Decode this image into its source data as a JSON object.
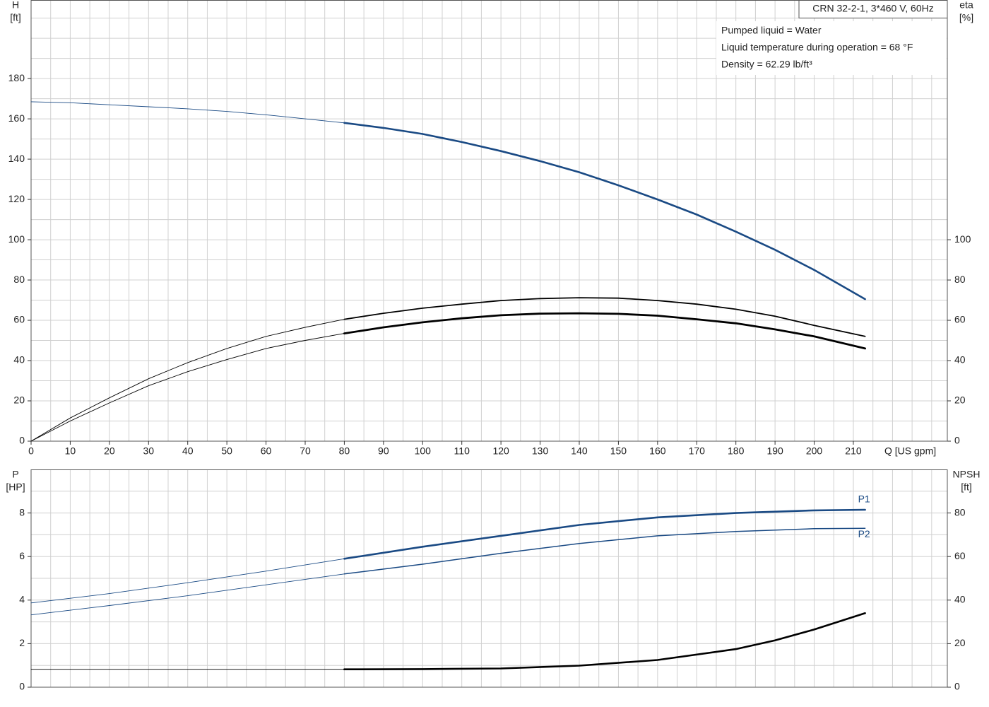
{
  "chart_data": [
    {
      "type": "line",
      "title": "CRN 32-2-1, 3*460 V, 60Hz",
      "annotations": [
        "Pumped liquid = Water",
        "Liquid temperature during operation = 68 °F",
        "Density = 62.29 lb/ft³"
      ],
      "ylabel": "H",
      "yunit": "[ft]",
      "y2label": "eta",
      "y2unit": "[%]",
      "xlabel": "Q [US gpm]",
      "xlim": [
        0,
        234
      ],
      "xticks": [
        0,
        10,
        20,
        30,
        40,
        50,
        60,
        70,
        80,
        90,
        100,
        110,
        120,
        130,
        140,
        150,
        160,
        170,
        180,
        190,
        200,
        210
      ],
      "xgrid": [
        5,
        10,
        15,
        20,
        25,
        30,
        35,
        40,
        45,
        50,
        55,
        60,
        65,
        70,
        75,
        80,
        85,
        90,
        95,
        100,
        105,
        110,
        115,
        120,
        125,
        130,
        135,
        140,
        145,
        150,
        155,
        160,
        165,
        170,
        175,
        180,
        185,
        190,
        195,
        200,
        205,
        210,
        215,
        220,
        225,
        230
      ],
      "ylim": [
        0,
        219
      ],
      "yticks": [
        0,
        20,
        40,
        60,
        80,
        100,
        120,
        140,
        160,
        180
      ],
      "ygrid": [
        10,
        20,
        30,
        40,
        50,
        60,
        70,
        80,
        90,
        100,
        110,
        120,
        130,
        140,
        150,
        160,
        170,
        180,
        190,
        200,
        210
      ],
      "y2lim": [
        0,
        219
      ],
      "y2ticks": [
        0,
        20,
        40,
        60,
        80,
        100
      ],
      "grid": true,
      "series": [
        {
          "color": "#1a4a84",
          "width": 0.9,
          "x": [
            0,
            10,
            20,
            30,
            40,
            50,
            60,
            70,
            80
          ],
          "values": [
            168.5,
            168,
            167,
            166,
            165,
            163.7,
            162,
            160,
            158
          ]
        },
        {
          "color": "#1a4a84",
          "width": 2.6,
          "x": [
            80,
            90,
            100,
            110,
            120,
            130,
            140,
            150,
            160,
            170,
            180,
            190,
            200,
            213
          ],
          "values": [
            158,
            155.5,
            152.5,
            148.5,
            144,
            139,
            133.5,
            127,
            120,
            112.5,
            104,
            95,
            85,
            70.5
          ]
        },
        {
          "color": "#000000",
          "width": 0.9,
          "axis": "y2",
          "x": [
            0,
            10,
            20,
            30,
            40,
            50,
            60,
            70,
            80
          ],
          "values": [
            0,
            11.5,
            21.5,
            31,
            39,
            46,
            52,
            56.5,
            60.5
          ]
        },
        {
          "color": "#000000",
          "width": 1.8,
          "axis": "y2",
          "x": [
            80,
            90,
            100,
            110,
            120,
            130,
            140,
            150,
            160,
            170,
            180,
            190,
            200,
            213
          ],
          "values": [
            60.5,
            63.5,
            66,
            68,
            69.8,
            70.8,
            71.2,
            71,
            69.8,
            68,
            65.5,
            62,
            57.5,
            52
          ]
        },
        {
          "color": "#000000",
          "width": 0.9,
          "axis": "y2",
          "x": [
            0,
            10,
            20,
            30,
            40,
            50,
            60,
            70,
            80
          ],
          "values": [
            0,
            10,
            19,
            27.5,
            34.5,
            40.5,
            46,
            50,
            53.5
          ]
        },
        {
          "color": "#000000",
          "width": 2.8,
          "axis": "y2",
          "x": [
            80,
            90,
            100,
            110,
            120,
            130,
            140,
            150,
            160,
            170,
            180,
            190,
            200,
            213
          ],
          "values": [
            53.5,
            56.5,
            59,
            61,
            62.5,
            63.3,
            63.5,
            63.2,
            62.3,
            60.5,
            58.5,
            55.5,
            52,
            46
          ]
        }
      ]
    },
    {
      "type": "line",
      "ylabel": "P",
      "yunit": "[HP]",
      "y2label": "NPSH",
      "y2unit": "[ft]",
      "xlim": [
        0,
        234
      ],
      "xgrid": [
        5,
        10,
        15,
        20,
        25,
        30,
        35,
        40,
        45,
        50,
        55,
        60,
        65,
        70,
        75,
        80,
        85,
        90,
        95,
        100,
        105,
        110,
        115,
        120,
        125,
        130,
        135,
        140,
        145,
        150,
        155,
        160,
        165,
        170,
        175,
        180,
        185,
        190,
        195,
        200,
        205,
        210,
        215,
        220,
        225,
        230
      ],
      "ylim": [
        0,
        10
      ],
      "yticks": [
        0,
        2,
        4,
        6,
        8
      ],
      "ygrid": [
        1,
        2,
        3,
        4,
        5,
        6,
        7,
        8,
        9
      ],
      "y2lim": [
        0,
        100
      ],
      "y2ticks": [
        0,
        20,
        40,
        60,
        80
      ],
      "grid": true,
      "series": [
        {
          "color": "#1a4a84",
          "width": 0.9,
          "x": [
            0,
            20,
            40,
            60,
            80
          ],
          "values": [
            3.87,
            4.3,
            4.8,
            5.33,
            5.9
          ]
        },
        {
          "name": "P1",
          "color": "#1a4a84",
          "width": 2.6,
          "x": [
            80,
            100,
            120,
            140,
            160,
            180,
            200,
            213
          ],
          "values": [
            5.9,
            6.45,
            6.95,
            7.45,
            7.8,
            8.0,
            8.12,
            8.15
          ]
        },
        {
          "color": "#1a4a84",
          "width": 0.9,
          "x": [
            0,
            20,
            40,
            60,
            80
          ],
          "values": [
            3.32,
            3.75,
            4.2,
            4.7,
            5.2
          ]
        },
        {
          "name": "P2",
          "color": "#1a4a84",
          "width": 1.5,
          "x": [
            80,
            100,
            120,
            140,
            160,
            180,
            200,
            213
          ],
          "values": [
            5.2,
            5.65,
            6.15,
            6.6,
            6.95,
            7.15,
            7.28,
            7.3
          ]
        },
        {
          "color": "#000000",
          "width": 0.9,
          "axis": "y2",
          "x": [
            0,
            40,
            80
          ],
          "values": [
            8.2,
            8.2,
            8.2
          ]
        },
        {
          "color": "#000000",
          "width": 2.6,
          "axis": "y2",
          "x": [
            80,
            100,
            120,
            140,
            160,
            180,
            190,
            200,
            213
          ],
          "values": [
            8.2,
            8.3,
            8.6,
            9.9,
            12.5,
            17.5,
            21.5,
            26.5,
            34
          ]
        }
      ]
    }
  ]
}
